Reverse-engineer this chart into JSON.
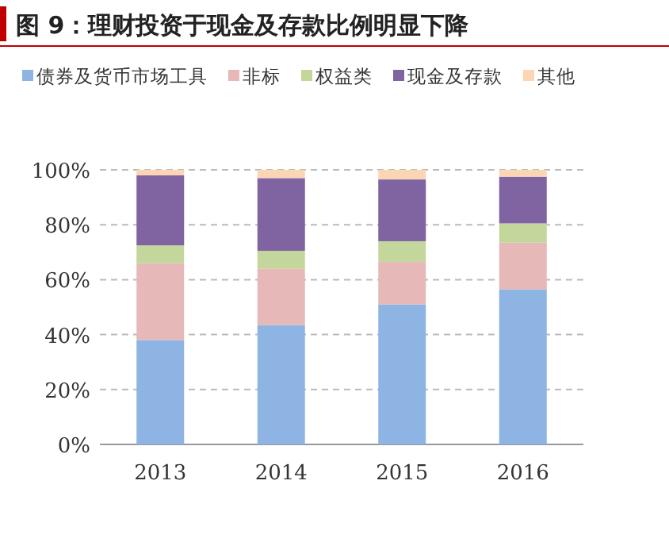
{
  "chart_data": {
    "type": "bar",
    "stacked": true,
    "title": "图 9：理财投资于现金及存款比例明显下降",
    "categories": [
      "2013",
      "2014",
      "2015",
      "2016"
    ],
    "series": [
      {
        "name": "债券及货币市场工具",
        "color": "#8db4e2",
        "values": [
          38,
          43.5,
          51,
          56.5
        ]
      },
      {
        "name": "非标",
        "color": "#e6b9b8",
        "values": [
          28,
          20.5,
          15.5,
          17
        ]
      },
      {
        "name": "权益类",
        "color": "#c3d69b",
        "values": [
          6.5,
          6.5,
          7.5,
          7
        ]
      },
      {
        "name": "现金及存款",
        "color": "#8064a2",
        "values": [
          25.5,
          26.5,
          22.5,
          17
        ]
      },
      {
        "name": "其他",
        "color": "#fcd5b5",
        "values": [
          2,
          3,
          3.5,
          2.5
        ]
      }
    ],
    "ylim": [
      0,
      100
    ],
    "yticks": [
      {
        "value": 0,
        "label": "0%"
      },
      {
        "value": 20,
        "label": "20%"
      },
      {
        "value": 40,
        "label": "40%"
      },
      {
        "value": 60,
        "label": "60%"
      },
      {
        "value": 80,
        "label": "80%"
      },
      {
        "value": 100,
        "label": "100%"
      }
    ],
    "grid": "y",
    "legend": "top"
  }
}
